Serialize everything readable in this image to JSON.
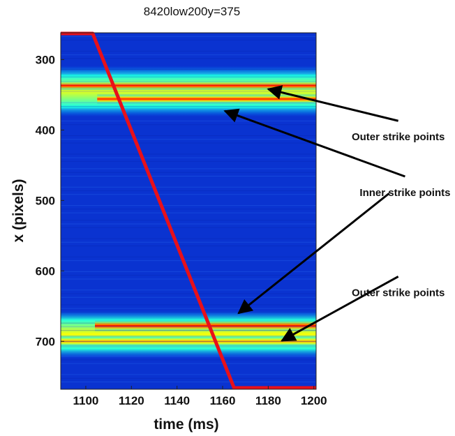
{
  "chart_data": {
    "type": "heatmap",
    "title": "8420low200y=375",
    "xlabel": "time (ms)",
    "ylabel": "x (pixels)",
    "xlim": [
      1089,
      1201
    ],
    "ylim": [
      262,
      768
    ],
    "y_inverted": true,
    "xticks": [
      1100,
      1120,
      1140,
      1160,
      1180,
      1200
    ],
    "yticks": [
      300,
      400,
      500,
      600,
      700
    ],
    "colormap": "jet",
    "intensity_bands": [
      {
        "x_start": 1089,
        "x_end": 1201,
        "y_center": 345,
        "half_width": 36,
        "level": 0.6
      },
      {
        "x_start": 1089,
        "x_end": 1201,
        "y_center": 337,
        "half_width": 7,
        "level": 0.88
      },
      {
        "x_start": 1105,
        "x_end": 1201,
        "y_center": 356,
        "half_width": 7,
        "level": 0.85
      },
      {
        "x_start": 1089,
        "x_end": 1201,
        "y_center": 690,
        "half_width": 34,
        "level": 0.62
      },
      {
        "x_start": 1089,
        "x_end": 1201,
        "y_center": 700,
        "half_width": 9,
        "level": 0.72
      },
      {
        "x_start": 1104,
        "x_end": 1201,
        "y_center": 678,
        "half_width": 8,
        "level": 0.9
      }
    ],
    "series": [
      {
        "color": "#e8101a",
        "x": [
          1089,
          1103,
          1165,
          1201
        ],
        "y": [
          263,
          263,
          766,
          766
        ]
      }
    ],
    "annotations": [
      {
        "text": "Outer strike points",
        "text_x": 1237,
        "text_y": 387,
        "arrow_to_x": 1180,
        "arrow_to_y": 342
      },
      {
        "text": "Inner strike points",
        "text_x": 1240,
        "text_y": 466,
        "arrow_to_x": 1161,
        "arrow_to_y": 373
      },
      {
        "text": "",
        "text_x": 1233,
        "text_y": 490,
        "arrow_to_x": 1167,
        "arrow_to_y": 660
      },
      {
        "text": "Outer strike points",
        "text_x": 1237,
        "text_y": 608,
        "arrow_to_x": 1186,
        "arrow_to_y": 699
      }
    ],
    "grid": false,
    "legend": false
  }
}
